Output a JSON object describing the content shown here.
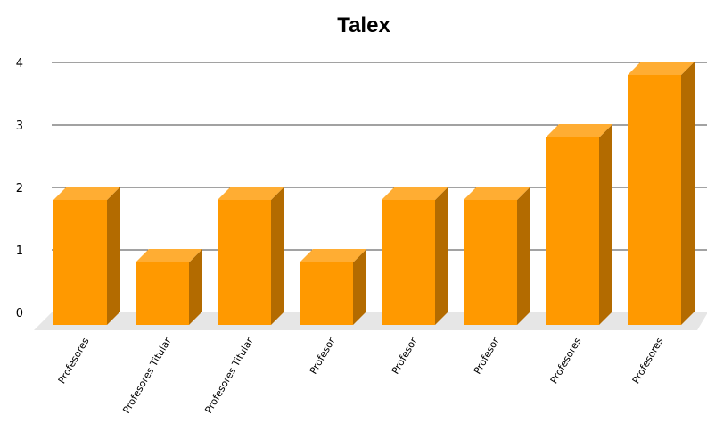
{
  "chart_data": {
    "type": "bar",
    "title": "Talex",
    "xlabel": "",
    "ylabel": "",
    "categories": [
      "Profesores",
      "Profesores Titular",
      "Profesores Titular",
      "Profesor",
      "Profesor",
      "Profesor",
      "Profesores",
      "Profesores"
    ],
    "values": [
      2,
      1,
      2,
      1,
      2,
      2,
      3,
      4
    ],
    "ylim": [
      0,
      4
    ],
    "yticks": [
      "0",
      "1",
      "2",
      "3",
      "4"
    ],
    "grid": true,
    "legend": "none",
    "style": "3d",
    "colors": {
      "bar_front": "#ff9900",
      "bar_top": "#ffad33",
      "bar_side": "#b36b00",
      "grid": "#444444",
      "floor": "#e6e6e6"
    }
  }
}
